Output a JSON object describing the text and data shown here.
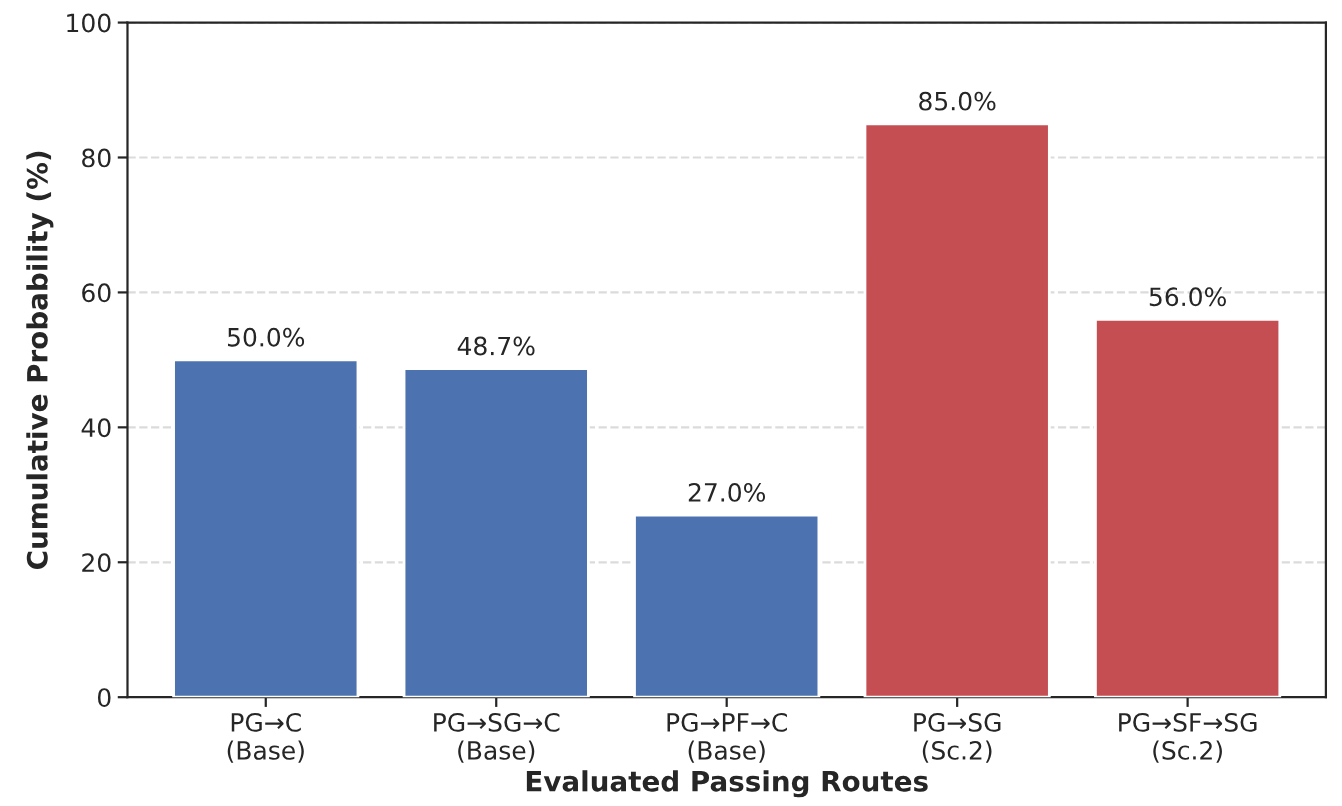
{
  "chart_data": {
    "type": "bar",
    "xlabel": "Evaluated Passing Routes",
    "ylabel": "Cumulative Probability (%)",
    "categories": [
      "PG→C\n(Base)",
      "PG→SG→C\n(Base)",
      "PG→PF→C\n(Base)",
      "PG→SG\n(Sc.2)",
      "PG→SF→SG\n(Sc.2)"
    ],
    "values": [
      50.0,
      48.7,
      27.0,
      85.0,
      56.0
    ],
    "colors": [
      "#4c72b0",
      "#4c72b0",
      "#4c72b0",
      "#c44e52",
      "#c44e52"
    ],
    "value_labels": [
      "50.0%",
      "48.7%",
      "27.0%",
      "85.0%",
      "56.0%"
    ],
    "ylim": [
      0,
      100
    ],
    "yticks": [
      0,
      20,
      40,
      60,
      80,
      100
    ],
    "grid": "y"
  }
}
